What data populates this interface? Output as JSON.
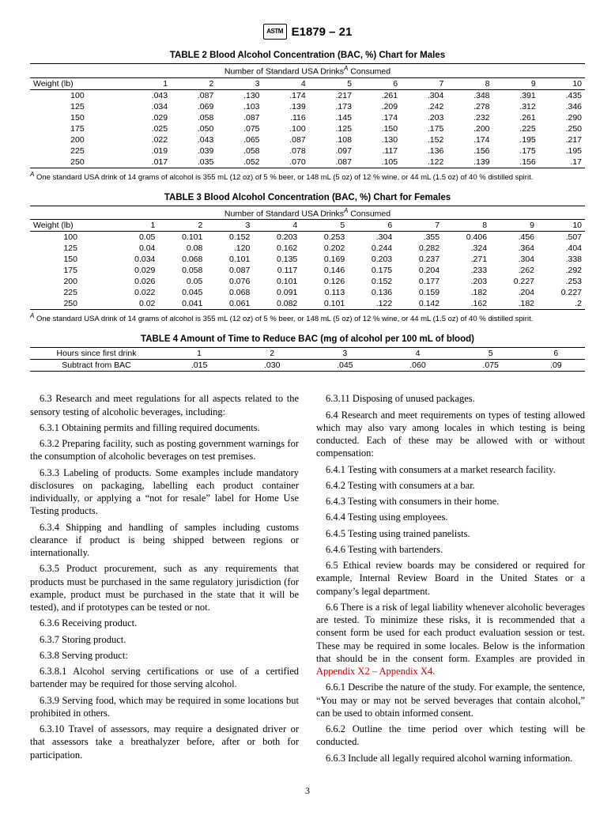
{
  "header": {
    "doc_id": "E1879 – 21"
  },
  "table2": {
    "title": "TABLE 2 Blood Alcohol Concentration (BAC, %) Chart for Males",
    "subhead": "Number of Standard USA Drinks",
    "subhead_tail": " Consumed",
    "col0": "Weight (lb)",
    "drink_cols": [
      "1",
      "2",
      "3",
      "4",
      "5",
      "6",
      "7",
      "8",
      "9",
      "10"
    ],
    "rows": [
      [
        "100",
        ".043",
        ".087",
        ".130",
        ".174",
        ".217",
        ".261",
        ".304",
        ".348",
        ".391",
        ".435"
      ],
      [
        "125",
        ".034",
        ".069",
        ".103",
        ".139",
        ".173",
        ".209",
        ".242",
        ".278",
        ".312",
        ".346"
      ],
      [
        "150",
        ".029",
        ".058",
        ".087",
        ".116",
        ".145",
        ".174",
        ".203",
        ".232",
        ".261",
        ".290"
      ],
      [
        "175",
        ".025",
        ".050",
        ".075",
        ".100",
        ".125",
        ".150",
        ".175",
        ".200",
        ".225",
        ".250"
      ],
      [
        "200",
        ".022",
        ".043",
        ".065",
        ".087",
        ".108",
        ".130",
        ".152",
        ".174",
        ".195",
        ".217"
      ],
      [
        "225",
        ".019",
        ".039",
        ".058",
        ".078",
        ".097",
        ".117",
        ".136",
        ".156",
        ".175",
        ".195"
      ],
      [
        "250",
        ".017",
        ".035",
        ".052",
        ".070",
        ".087",
        ".105",
        ".122",
        ".139",
        ".156",
        ".17"
      ]
    ],
    "footnote": "One standard USA drink of 14 grams of alcohol is 355 mL (12 oz) of 5 % beer, or 148 mL (5 oz) of 12 % wine, or 44 mL (1.5 oz) of 40 % distilled spirit."
  },
  "table3": {
    "title": "TABLE 3 Blood Alcohol Concentration (BAC, %) Chart for Females",
    "subhead": "Number of Standard USA Drinks",
    "subhead_tail": " Consumed",
    "col0": "Weight (lb)",
    "drink_cols": [
      "1",
      "2",
      "3",
      "4",
      "5",
      "6",
      "7",
      "8",
      "9",
      "10"
    ],
    "rows": [
      [
        "100",
        "0.05",
        "0.101",
        "0.152",
        "0.203",
        "0.253",
        ".304",
        ".355",
        "0.406",
        ".456",
        ".507"
      ],
      [
        "125",
        "0.04",
        "0.08",
        ".120",
        "0.162",
        "0.202",
        "0.244",
        "0.282",
        ".324",
        ".364",
        ".404"
      ],
      [
        "150",
        "0.034",
        "0.068",
        "0.101",
        "0.135",
        "0.169",
        "0.203",
        "0.237",
        ".271",
        ".304",
        ".338"
      ],
      [
        "175",
        "0.029",
        "0.058",
        "0.087",
        "0.117",
        "0.146",
        "0.175",
        "0.204",
        ".233",
        ".262",
        ".292"
      ],
      [
        "200",
        "0.026",
        "0.05",
        "0.076",
        "0.101",
        "0.126",
        "0.152",
        "0.177",
        ".203",
        "0.227",
        ".253"
      ],
      [
        "225",
        "0.022",
        "0.045",
        "0.068",
        "0.091",
        "0.113",
        "0.136",
        "0.159",
        ".182",
        ".204",
        "0.227"
      ],
      [
        "250",
        "0.02",
        "0.041",
        "0.061",
        "0.082",
        "0.101",
        ".122",
        "0.142",
        ".162",
        ".182",
        ".2"
      ]
    ],
    "footnote": "One standard USA drink of 14 grams of alcohol is 355 mL (12 oz) of 5 % beer, or 148 mL (5 oz) of 12 % wine, or 44 mL (1.5 oz) of 40 % distilled spirit."
  },
  "table4": {
    "title": "TABLE 4 Amount of Time to Reduce BAC (mg of alcohol per 100 mL of blood)",
    "row1_label": "Hours since first drink",
    "row1": [
      "1",
      "2",
      "3",
      "4",
      "5",
      "6"
    ],
    "row2_label": "Subtract from BAC",
    "row2": [
      ".015",
      ".030",
      ".045",
      ".060",
      ".075",
      ".09"
    ]
  },
  "body": {
    "p63": "6.3 Research and meet regulations for all aspects related to the sensory testing of alcoholic beverages, including:",
    "p631": "6.3.1 Obtaining permits and filling required documents.",
    "p632": "6.3.2 Preparing facility, such as posting government warnings for the consumption of alcoholic beverages on test premises.",
    "p633": "6.3.3 Labeling of products. Some examples include mandatory disclosures on packaging, labelling each product container individually, or applying a “not for resale” label for Home Use Testing products.",
    "p634": "6.3.4 Shipping and handling of samples including customs clearance if product is being shipped between regions or internationally.",
    "p635": "6.3.5 Product procurement, such as any requirements that products must be purchased in the same regulatory jurisdiction (for example, product must be purchased in the state that it will be tested), and if prototypes can be tested or not.",
    "p636": "6.3.6 Receiving product.",
    "p637": "6.3.7 Storing product.",
    "p638": "6.3.8 Serving product:",
    "p6381": "6.3.8.1 Alcohol serving certifications or use of a certified bartender may be required for those serving alcohol.",
    "p639": "6.3.9 Serving food, which may be required in some locations but prohibited in others.",
    "p6310": "6.3.10 Travel of assessors, may require a designated driver or that assessors take a breathalyzer before, after or both for participation.",
    "p6311": "6.3.11 Disposing of unused packages.",
    "p64": "6.4 Research and meet requirements on types of testing allowed which may also vary among locales in which testing is being conducted. Each of these may be allowed with or without compensation:",
    "p641": "6.4.1 Testing with consumers at a market research facility.",
    "p642": "6.4.2 Testing with consumers at a bar.",
    "p643": "6.4.3 Testing with consumers in their home.",
    "p644": "6.4.4 Testing using employees.",
    "p645": "6.4.5 Testing using trained panelists.",
    "p646": "6.4.6 Testing with bartenders.",
    "p65": "6.5 Ethical review boards may be considered or required for example, Internal Review Board in the United States or a company’s legal department.",
    "p66a": "6.6 There is a risk of legal liability whenever alcoholic beverages are tested. To minimize these risks, it is recommended that a consent form be used for each product evaluation session or test. These may be required in some locales. Below is the information that should be in the consent form. Examples are provided in ",
    "p66link": "Appendix X2 – Appendix X4",
    "p66b": ".",
    "p661": "6.6.1 Describe the nature of the study. For example, the sentence, “You may or may not be served beverages that contain alcohol,” can be used to obtain informed consent.",
    "p662": "6.6.2 Outline the time period over which testing will be conducted.",
    "p663": "6.6.3 Include all legally required alcohol warning information.",
    "page_num": "3"
  }
}
